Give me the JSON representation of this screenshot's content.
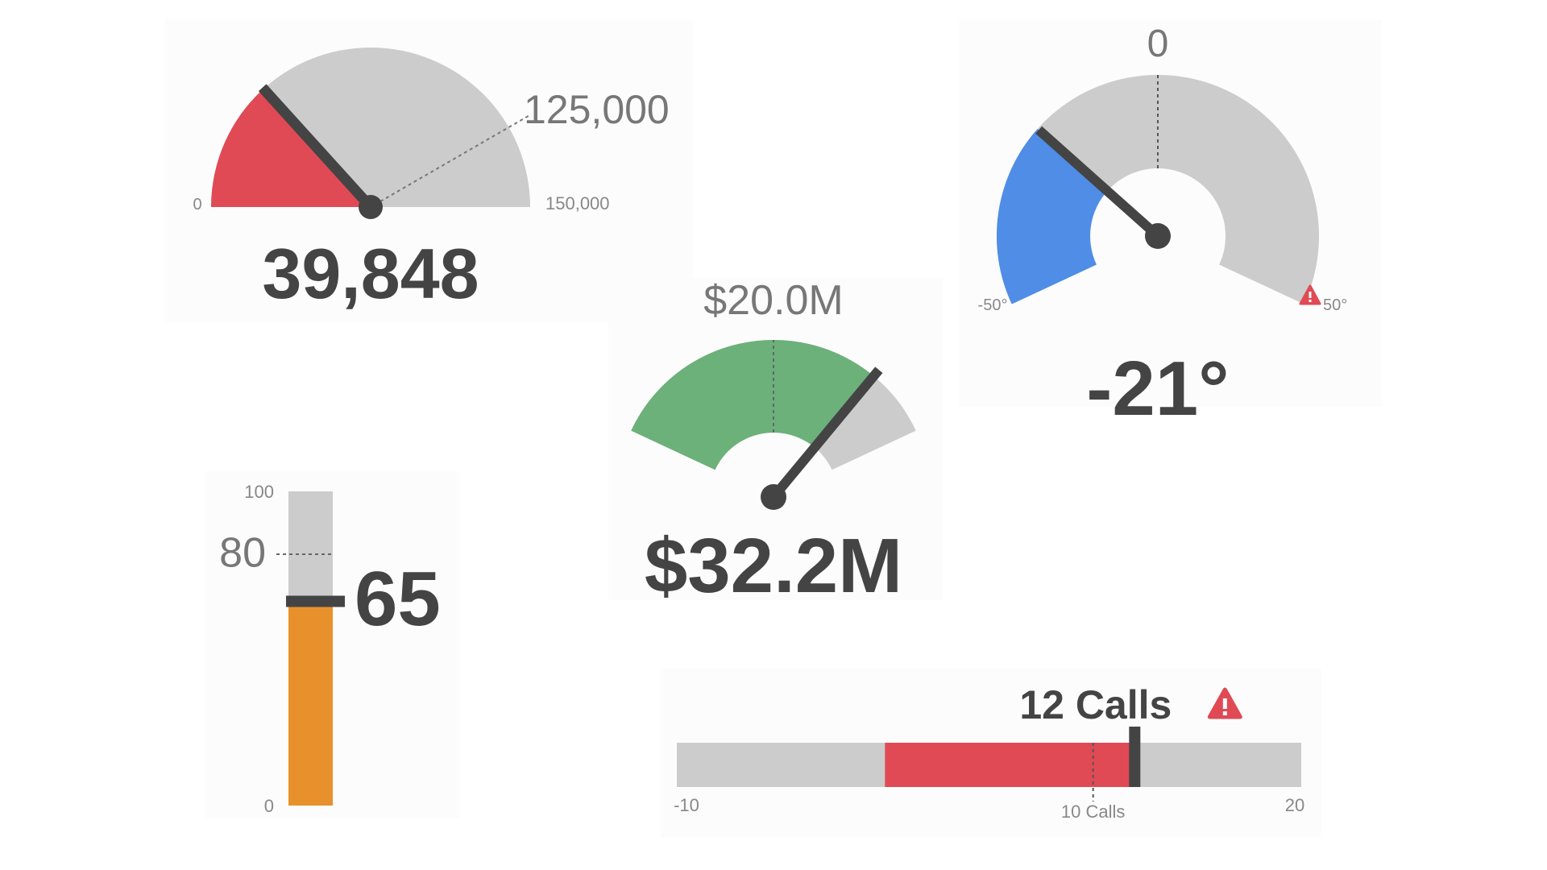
{
  "chart_data": [
    {
      "id": "gauge1",
      "type": "gauge",
      "value": 39848,
      "value_label": "39,848",
      "min": 0,
      "max": 150000,
      "min_label": "0",
      "max_label": "150,000",
      "target": 125000,
      "target_label": "125,000",
      "colors": {
        "fill": "#e04a55",
        "track": "#cccccc"
      }
    },
    {
      "id": "gauge2",
      "type": "gauge",
      "value": 32.2,
      "value_label": "$32.2M",
      "min": 0,
      "max": 40,
      "target": 20.0,
      "target_label": "$20.0M",
      "colors": {
        "fill": "#6cb07a",
        "track": "#cccccc"
      }
    },
    {
      "id": "gauge3",
      "type": "gauge",
      "value": -21,
      "value_label": "-21°",
      "min": -50,
      "max": 50,
      "min_label": "-50°",
      "max_label": "50°",
      "target": 0,
      "target_label": "0",
      "alert_icon": "warning-icon",
      "colors": {
        "fill": "#4f8de6",
        "track": "#cccccc",
        "alert": "#e04a55"
      }
    },
    {
      "id": "thermo",
      "type": "vertical-bullet",
      "value": 65,
      "value_label": "65",
      "min": 0,
      "max": 100,
      "min_label": "0",
      "max_label": "100",
      "target": 80,
      "target_label": "80",
      "colors": {
        "fill": "#e8912c",
        "track": "#cccccc"
      }
    },
    {
      "id": "bullet",
      "type": "horizontal-bullet",
      "value": 12,
      "value_label": "12 Calls",
      "min": -10,
      "max": 20,
      "min_label": "-10",
      "max_label": "20",
      "range_start": 0,
      "target": 10,
      "target_label": "10 Calls",
      "alert_icon": "warning-icon",
      "colors": {
        "fill": "#e04a55",
        "track": "#cccccc",
        "alert": "#e04a55"
      }
    }
  ]
}
